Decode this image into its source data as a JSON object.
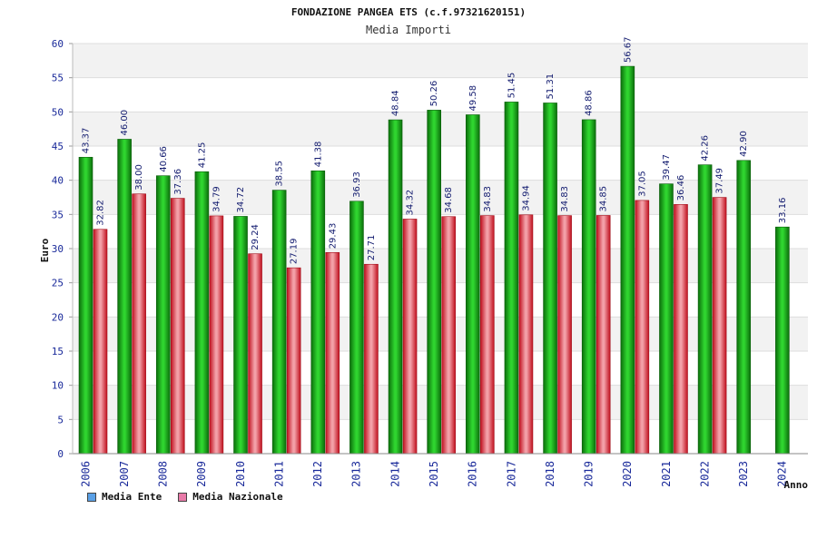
{
  "chart_data": {
    "type": "bar",
    "title": "FONDAZIONE PANGEA ETS (c.f.97321620151)",
    "subtitle": "Media Importi",
    "xlabel": "Anno",
    "ylabel": "Euro",
    "ylim": [
      0,
      60
    ],
    "yticks": [
      0,
      5,
      10,
      15,
      20,
      25,
      30,
      35,
      40,
      45,
      50,
      55,
      60
    ],
    "grid": true,
    "legend_position": "bottom-left",
    "categories": [
      "2006",
      "2007",
      "2008",
      "2009",
      "2010",
      "2011",
      "2012",
      "2013",
      "2014",
      "2015",
      "2016",
      "2017",
      "2018",
      "2019",
      "2020",
      "2021",
      "2022",
      "2023",
      "2024"
    ],
    "series": [
      {
        "name": "Media Ente",
        "color": "#1fb31f",
        "legend_color": "#5aa0e6",
        "values": [
          43.37,
          46.0,
          40.66,
          41.25,
          34.72,
          38.55,
          41.38,
          36.93,
          48.84,
          50.26,
          49.58,
          51.45,
          51.31,
          48.86,
          56.67,
          39.47,
          42.26,
          42.9,
          33.16
        ],
        "labels": [
          "43.37",
          "46.00",
          "40.66",
          "41.25",
          "34.72",
          "38.55",
          "41.38",
          "36.93",
          "48.84",
          "50.26",
          "49.58",
          "51.45",
          "51.31",
          "48.86",
          "56.67",
          "39.47",
          "42.26",
          "42.90",
          "33.16"
        ]
      },
      {
        "name": "Media Nazionale",
        "color": "#e8404a",
        "legend_color": "#e87aa8",
        "values": [
          32.82,
          38.0,
          37.36,
          34.79,
          29.24,
          27.19,
          29.43,
          27.71,
          34.32,
          34.68,
          34.83,
          34.94,
          34.83,
          34.85,
          37.05,
          36.46,
          37.49,
          null,
          null
        ],
        "labels": [
          "32.82",
          "38.00",
          "37.36",
          "34.79",
          "29.24",
          "27.19",
          "29.43",
          "27.71",
          "34.32",
          "34.68",
          "34.83",
          "34.94",
          "34.83",
          "34.85",
          "37.05",
          "36.46",
          "37.49",
          null,
          null
        ]
      }
    ]
  }
}
